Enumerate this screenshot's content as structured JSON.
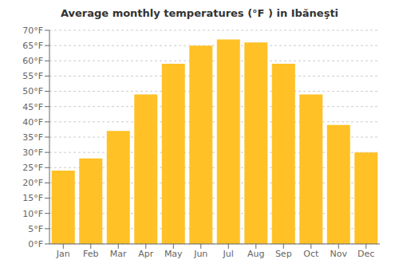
{
  "chart_data": {
    "type": "bar",
    "title": "Average monthly temperatures (°F ) in Ibăneşti",
    "categories": [
      "Jan",
      "Feb",
      "Mar",
      "Apr",
      "May",
      "Jun",
      "Jul",
      "Aug",
      "Sep",
      "Oct",
      "Nov",
      "Dec"
    ],
    "values": [
      24,
      28,
      37,
      49,
      59,
      65,
      67,
      66,
      59,
      49,
      39,
      30
    ],
    "color": "#FFC125",
    "ylim": [
      0,
      70
    ],
    "yticks": [
      {
        "value": 0,
        "label": "0°F"
      },
      {
        "value": 5,
        "label": "5°F"
      },
      {
        "value": 10,
        "label": "10°F"
      },
      {
        "value": 15,
        "label": "15°F"
      },
      {
        "value": 20,
        "label": "20°F"
      },
      {
        "value": 25,
        "label": "25°F"
      },
      {
        "value": 30,
        "label": "30°F"
      },
      {
        "value": 35,
        "label": "35°F"
      },
      {
        "value": 40,
        "label": "40°F"
      },
      {
        "value": 45,
        "label": "45°F"
      },
      {
        "value": 50,
        "label": "50°F"
      },
      {
        "value": 55,
        "label": "55°F"
      },
      {
        "value": 60,
        "label": "60°F"
      },
      {
        "value": 65,
        "label": "65°F"
      },
      {
        "value": 70,
        "label": "70°F"
      }
    ],
    "grid": true
  }
}
